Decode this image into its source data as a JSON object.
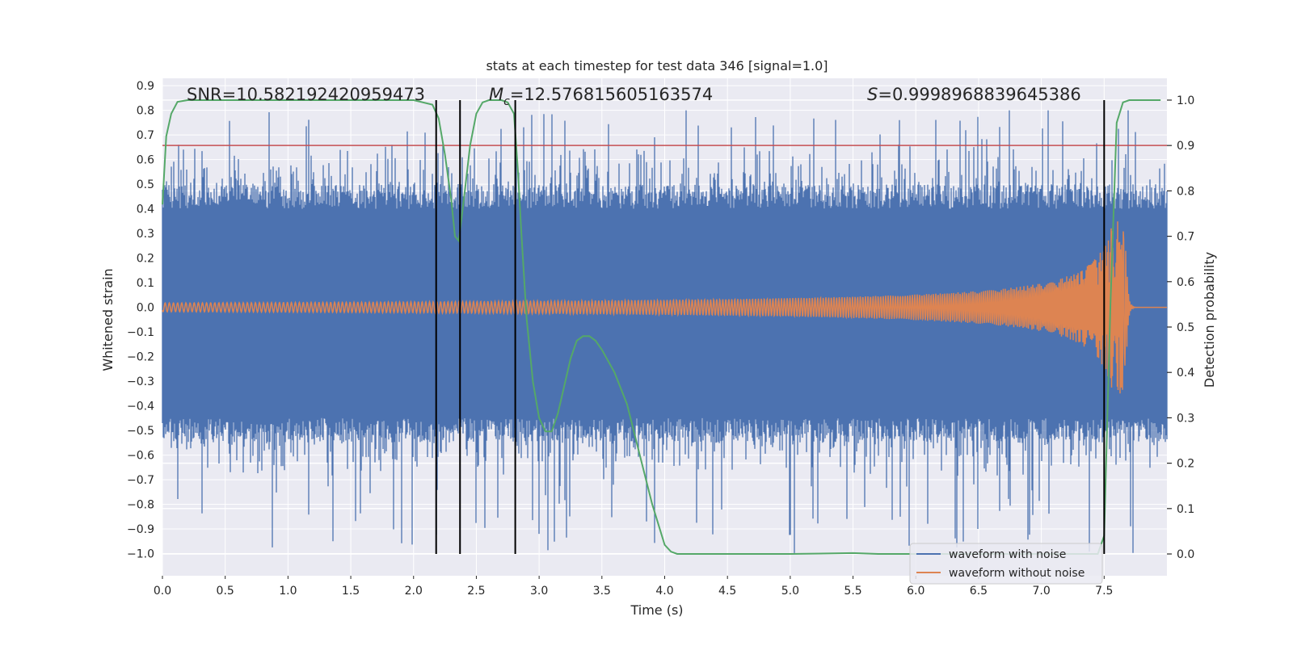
{
  "chart_data": {
    "type": "line",
    "title": "stats at each timestep for test data 346 [signal=1.0]",
    "xlabel": "Time (s)",
    "ylabel": "Whitened strain",
    "y2label": "Detection probability",
    "xlim": [
      0.0,
      8.0
    ],
    "ylim": [
      -1.09,
      0.93
    ],
    "y2lim": [
      -0.048,
      1.048
    ],
    "xticks": [
      "0.0",
      "0.5",
      "1.0",
      "1.5",
      "2.0",
      "2.5",
      "3.0",
      "3.5",
      "4.0",
      "4.5",
      "5.0",
      "5.5",
      "6.0",
      "6.5",
      "7.0",
      "7.5"
    ],
    "yticks": [
      "0.9",
      "0.8",
      "0.7",
      "0.6",
      "0.5",
      "0.4",
      "0.3",
      "0.2",
      "0.1",
      "0.0",
      "−0.1",
      "−0.2",
      "−0.3",
      "−0.4",
      "−0.5",
      "−0.6",
      "−0.7",
      "−0.8",
      "−0.9",
      "−1.0"
    ],
    "y2ticks": [
      "1.0",
      "0.9",
      "0.8",
      "0.7",
      "0.6",
      "0.5",
      "0.4",
      "0.3",
      "0.2",
      "0.1",
      "0.0"
    ],
    "annotations": {
      "snr": "SNR=10.582192420959473",
      "mc_symbol": "M",
      "mc_sub": "c",
      "mc_value": "=12.576815605163574",
      "s_symbol": "S",
      "s_value": "=0.9998968839645386"
    },
    "threshold_probability": 0.9,
    "vertical_lines_s": [
      2.18,
      2.37,
      2.81,
      7.5
    ],
    "series": [
      {
        "name": "waveform with noise",
        "color": "#4c72b0",
        "envelope_min": -0.5,
        "envelope_max": 0.45,
        "peak_max": 0.8,
        "peak_min": -1.0
      },
      {
        "name": "waveform without noise",
        "color": "#dd8452",
        "description_amplitude_start": 0.018,
        "peak_amplitude": 0.35,
        "merger_time": 7.68
      },
      {
        "name": "detection probability",
        "color": "#55a868",
        "axis": "right",
        "x": [
          0.0,
          0.03,
          0.07,
          0.12,
          0.2,
          0.5,
          1.0,
          1.5,
          2.0,
          2.15,
          2.2,
          2.25,
          2.3,
          2.33,
          2.36,
          2.4,
          2.45,
          2.5,
          2.55,
          2.6,
          2.7,
          2.75,
          2.8,
          2.83,
          2.86,
          2.9,
          2.95,
          3.0,
          3.05,
          3.1,
          3.15,
          3.2,
          3.25,
          3.3,
          3.35,
          3.4,
          3.45,
          3.5,
          3.6,
          3.7,
          3.8,
          3.9,
          4.0,
          4.05,
          4.1,
          4.2,
          5.0,
          5.5,
          5.7,
          6.0,
          7.0,
          7.45,
          7.5,
          7.55,
          7.6,
          7.65,
          7.7,
          7.95
        ],
        "y": [
          0.77,
          0.92,
          0.97,
          0.996,
          1.0,
          1.0,
          1.0,
          1.0,
          1.0,
          0.99,
          0.96,
          0.88,
          0.78,
          0.7,
          0.69,
          0.78,
          0.9,
          0.97,
          0.995,
          1.0,
          1.0,
          0.995,
          0.97,
          0.85,
          0.7,
          0.52,
          0.38,
          0.3,
          0.27,
          0.27,
          0.31,
          0.37,
          0.43,
          0.47,
          0.48,
          0.48,
          0.47,
          0.45,
          0.4,
          0.33,
          0.22,
          0.11,
          0.02,
          0.005,
          0.0,
          0.0,
          0.0,
          0.002,
          0.0,
          0.0,
          0.0,
          0.0,
          0.04,
          0.55,
          0.95,
          0.995,
          1.0,
          1.0
        ]
      }
    ],
    "legend": {
      "placement": "lower-right",
      "entries": [
        "waveform with noise",
        "waveform without noise"
      ]
    },
    "colors": {
      "axes_bg": "#eaeaf2",
      "grid": "#ffffff",
      "threshold": "#c44e52",
      "vline": "#000000"
    }
  }
}
